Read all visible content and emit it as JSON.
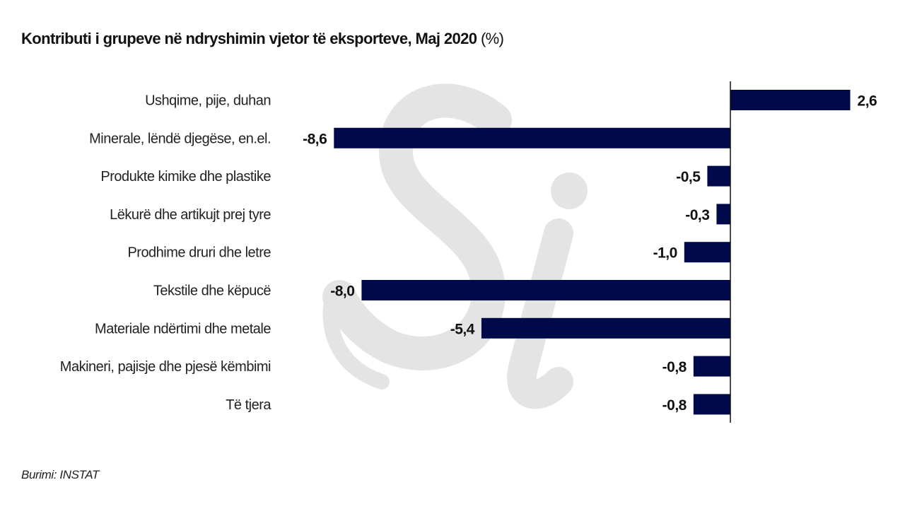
{
  "chart_data": {
    "type": "bar",
    "orientation": "horizontal",
    "title": "Kontributi i grupeve në ndryshimin vjetor të eksporteve, Maj 2020",
    "unit": "(%)",
    "categories": [
      "Ushqime, pije, duhan",
      "Minerale, lëndë djegëse, en.el.",
      "Produkte kimike dhe plastike",
      "Lëkurë dhe artikujt prej tyre",
      "Prodhime druri dhe letre",
      "Tekstile dhe këpucë",
      "Materiale ndërtimi dhe metale",
      "Makineri, pajisje dhe pjesë këmbimi",
      "Të tjera"
    ],
    "values": [
      2.6,
      -8.6,
      -0.5,
      -0.3,
      -1.0,
      -8.0,
      -5.4,
      -0.8,
      -0.8
    ],
    "value_labels": [
      "2,6",
      "-8,6",
      "-0,5",
      "-0,3",
      "-1,0",
      "-8,0",
      "-5,4",
      "-0,8",
      "-0,8"
    ],
    "xlim": [
      -8.6,
      2.6
    ],
    "grid": false,
    "legend": "none",
    "bar_color": "#000a4a",
    "watermark_color": "#e4e4e4",
    "source": "Burimi: INSTAT"
  },
  "watermark": "Si"
}
